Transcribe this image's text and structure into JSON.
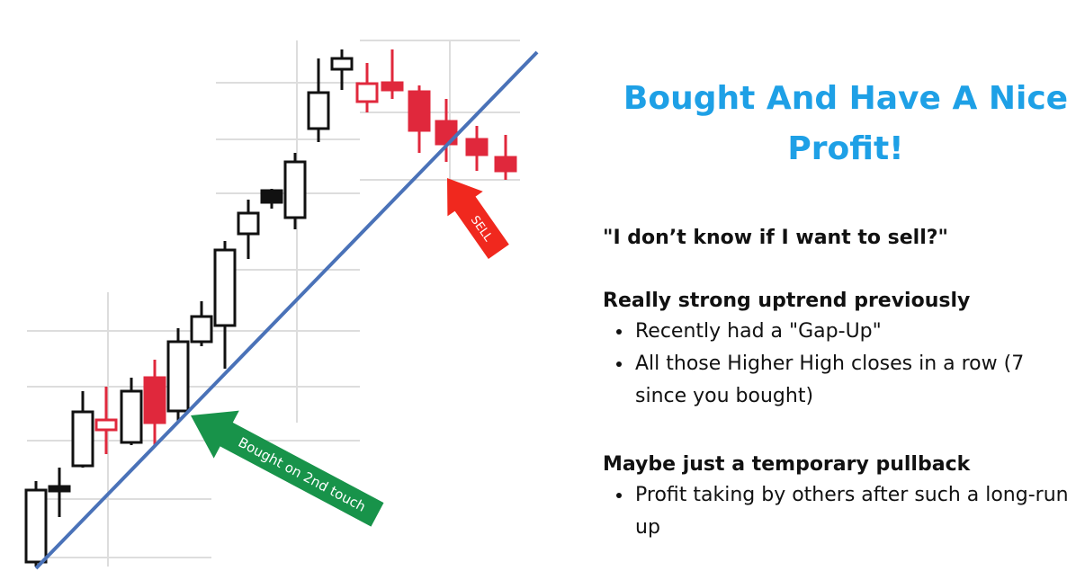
{
  "title": "Bought And Have A Nice Profit!",
  "chart_annotations": {
    "buy": "Bought on 2nd touch",
    "sell": "SELL"
  },
  "question": "\"I don’t know if I want to sell?\"",
  "sections": [
    {
      "heading": "Really strong uptrend previously",
      "bullets": [
        "Recently had a \"Gap-Up\"",
        "All those Higher High closes in a row (7 since you bought)"
      ]
    },
    {
      "heading": "Maybe just a temporary pullback",
      "bullets": [
        "Profit taking by others after such a long-run up"
      ]
    }
  ]
}
